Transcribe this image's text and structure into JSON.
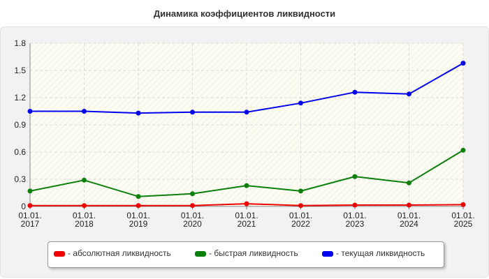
{
  "colors": {
    "absolute": "#ee0000",
    "quick": "#0a800a",
    "current": "#0000ee"
  },
  "chart_data": {
    "type": "line",
    "title": "Динамика коэффициентов ликвидности",
    "xlabel": "",
    "ylabel": "",
    "categories": [
      [
        "01.01.",
        "2017"
      ],
      [
        "01.01.",
        "2018"
      ],
      [
        "01.01.",
        "2019"
      ],
      [
        "01.01.",
        "2020"
      ],
      [
        "01.01.",
        "2021"
      ],
      [
        "01.01.",
        "2022"
      ],
      [
        "01.01.",
        "2023"
      ],
      [
        "01.01.",
        "2024"
      ],
      [
        "01.01.",
        "2025"
      ]
    ],
    "ylim": [
      0,
      1.8
    ],
    "yticks": [
      "0",
      "0.3",
      "0.6",
      "0.9",
      "1.2",
      "1.5",
      "1.8"
    ],
    "grid": true,
    "legend_position": "bottom",
    "series": [
      {
        "key": "absolute",
        "name": "- абсолютная ликвидность",
        "color": "#ee0000",
        "values": [
          0.01,
          0.01,
          0.01,
          0.01,
          0.03,
          0.01,
          0.015,
          0.015,
          0.02
        ]
      },
      {
        "key": "quick",
        "name": "- быстрая ликвидность",
        "color": "#0a800a",
        "values": [
          0.17,
          0.29,
          0.11,
          0.14,
          0.23,
          0.17,
          0.33,
          0.26,
          0.62
        ]
      },
      {
        "key": "current",
        "name": "- текущая ликвидность",
        "color": "#0000ee",
        "values": [
          1.05,
          1.05,
          1.03,
          1.04,
          1.04,
          1.14,
          1.26,
          1.24,
          1.58
        ]
      }
    ]
  }
}
